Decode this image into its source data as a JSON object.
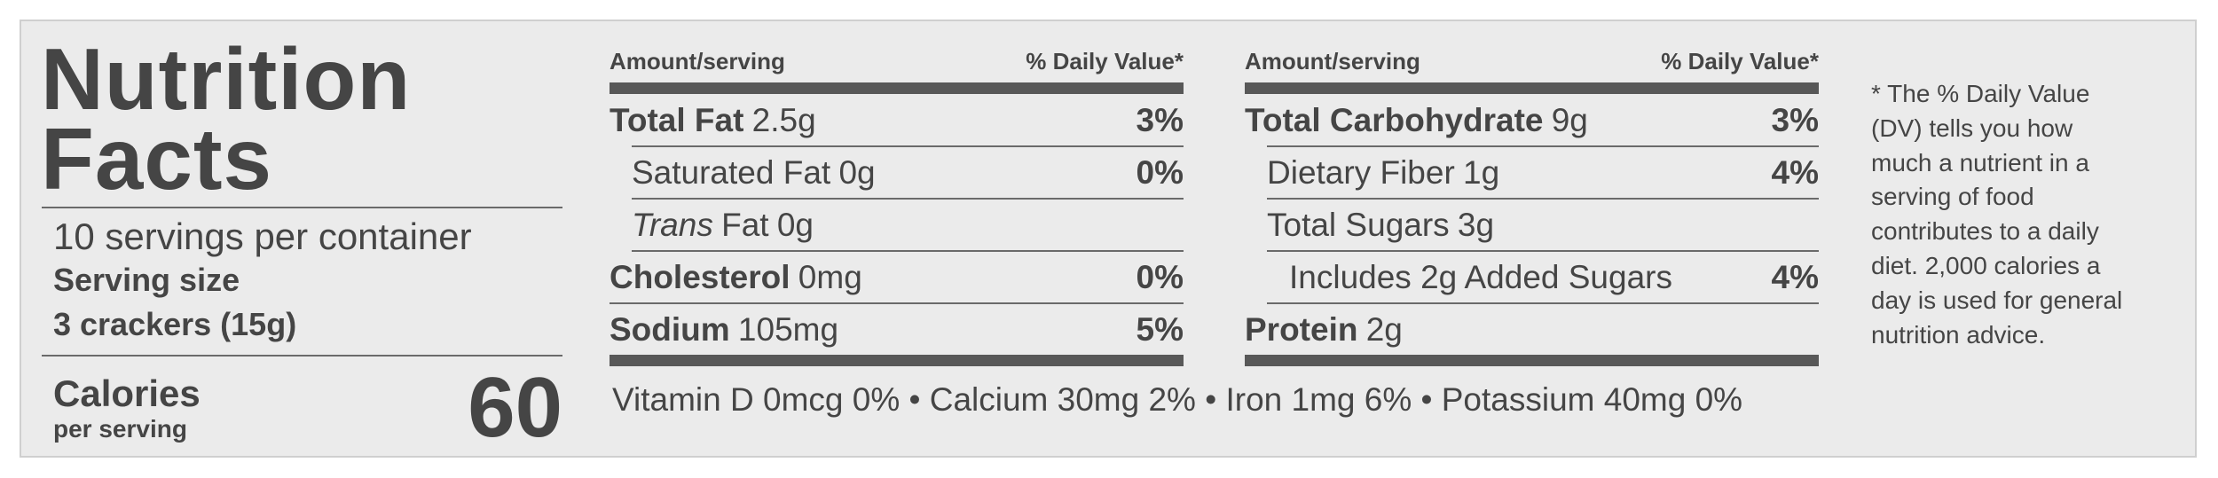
{
  "left": {
    "title_line1": "Nutrition",
    "title_line2": "Facts",
    "servings": "10 servings per container",
    "serving_size_label": "Serving size",
    "serving_size_value": "3 crackers (15g)",
    "calories_label": "Calories",
    "per_serving": "per serving",
    "calories_value": "60"
  },
  "columns": [
    {
      "header_amount": "Amount/serving",
      "header_dv": "% Daily Value*",
      "rows": [
        {
          "name": "Total Fat",
          "amount": "2.5g",
          "dv": "3%",
          "bold": true,
          "indent": 0
        },
        {
          "name": "Saturated Fat",
          "amount": "0g",
          "dv": "0%",
          "bold": false,
          "indent": 1
        },
        {
          "name": "Trans",
          "name_rest": "Fat",
          "amount": "0g",
          "bold": false,
          "italic": true,
          "indent": 1
        },
        {
          "name": "Cholesterol",
          "amount": "0mg",
          "dv": "0%",
          "bold": true,
          "indent": 0
        },
        {
          "name": "Sodium",
          "amount": "105mg",
          "dv": "5%",
          "bold": true,
          "indent": 0
        }
      ]
    },
    {
      "header_amount": "Amount/serving",
      "header_dv": "% Daily Value*",
      "rows": [
        {
          "name": "Total Carbohydrate",
          "amount": "9g",
          "dv": "3%",
          "bold": true,
          "indent": 0
        },
        {
          "name": "Dietary Fiber",
          "amount": "1g",
          "dv": "4%",
          "bold": false,
          "indent": 1
        },
        {
          "name": "Total Sugars",
          "amount": "3g",
          "bold": false,
          "indent": 1
        },
        {
          "name": "Includes 2g Added Sugars",
          "dv": "4%",
          "bold": false,
          "indent": 2
        },
        {
          "name": "Protein",
          "amount": "2g",
          "bold": true,
          "indent": 0
        }
      ]
    }
  ],
  "vitamins": "Vitamin D 0mcg 0% • Calcium 30mg 2% • Iron 1mg 6% • Potassium 40mg 0%",
  "footnote": [
    "* The % Daily Value",
    "(DV) tells you how",
    "much a nutrient in a",
    "serving of food",
    "contributes to a daily",
    "diet.  2,000 calories a",
    "day is used for general",
    "nutrition advice."
  ]
}
